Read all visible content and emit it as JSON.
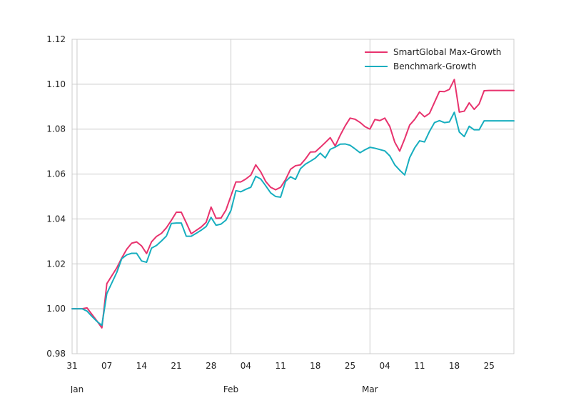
{
  "chart_data": {
    "type": "line",
    "grid": true,
    "legend_position": "top-right",
    "ylim": [
      0.98,
      1.12
    ],
    "y_ticks": [
      "0.98",
      "1.00",
      "1.02",
      "1.04",
      "1.06",
      "1.08",
      "1.10",
      "1.12"
    ],
    "x_range": [
      0,
      89
    ],
    "x_ticks": [
      {
        "day": 0,
        "label": "31"
      },
      {
        "day": 7,
        "label": "07"
      },
      {
        "day": 14,
        "label": "14"
      },
      {
        "day": 21,
        "label": "21"
      },
      {
        "day": 28,
        "label": "28"
      },
      {
        "day": 35,
        "label": "04"
      },
      {
        "day": 42,
        "label": "11"
      },
      {
        "day": 49,
        "label": "18"
      },
      {
        "day": 56,
        "label": "25"
      },
      {
        "day": 63,
        "label": "04"
      },
      {
        "day": 70,
        "label": "11"
      },
      {
        "day": 77,
        "label": "18"
      },
      {
        "day": 84,
        "label": "25"
      }
    ],
    "major_x_ticks": [
      {
        "day": 1,
        "label": "Jan"
      },
      {
        "day": 32,
        "label": "Feb"
      },
      {
        "day": 60,
        "label": "Mar"
      }
    ],
    "x": [
      0,
      1,
      2,
      3,
      4,
      5,
      6,
      7,
      8,
      9,
      10,
      11,
      12,
      13,
      14,
      15,
      16,
      17,
      18,
      19,
      20,
      21,
      22,
      23,
      24,
      25,
      26,
      27,
      28,
      29,
      30,
      31,
      32,
      33,
      34,
      35,
      36,
      37,
      38,
      39,
      40,
      41,
      42,
      43,
      44,
      45,
      46,
      47,
      48,
      49,
      50,
      51,
      52,
      53,
      54,
      55,
      56,
      57,
      58,
      59,
      60,
      61,
      62,
      63,
      64,
      65,
      66,
      67,
      68,
      69,
      70,
      71,
      72,
      73,
      74,
      75,
      76,
      77,
      78,
      79,
      80,
      81,
      82,
      83,
      84,
      85,
      86,
      87,
      88,
      89
    ],
    "series": [
      {
        "name": "SmartGlobal Max-Growth",
        "color": "#e8336e",
        "values": [
          1.0,
          1.0,
          1.0,
          1.0004,
          0.9975,
          0.9946,
          0.9915,
          1.0112,
          1.0147,
          1.0182,
          1.0226,
          1.0265,
          1.0292,
          1.0298,
          1.028,
          1.0246,
          1.0298,
          1.0322,
          1.0336,
          1.0361,
          1.0394,
          1.043,
          1.043,
          1.0383,
          1.0334,
          1.0349,
          1.0364,
          1.0385,
          1.0453,
          1.0403,
          1.0404,
          1.044,
          1.0503,
          1.0565,
          1.0565,
          1.0578,
          1.0595,
          1.0641,
          1.061,
          1.0567,
          1.0541,
          1.053,
          1.0541,
          1.0575,
          1.0621,
          1.0637,
          1.0641,
          1.0667,
          1.0698,
          1.0699,
          1.0719,
          1.074,
          1.0762,
          1.0725,
          1.0772,
          1.0814,
          1.0849,
          1.0844,
          1.083,
          1.0811,
          1.08,
          1.0843,
          1.0838,
          1.0849,
          1.0812,
          1.0742,
          1.0702,
          1.0757,
          1.0818,
          1.0843,
          1.0876,
          1.0855,
          1.087,
          1.0919,
          1.0968,
          1.0967,
          1.0977,
          1.1021,
          1.0876,
          1.088,
          1.0917,
          1.0888,
          1.0912,
          1.0971,
          1.0972,
          1.0972,
          1.0972,
          1.0972,
          1.0972,
          1.0972
        ]
      },
      {
        "name": "Benchmark-Growth",
        "color": "#17aebf",
        "values": [
          1.0,
          1.0,
          1.0,
          0.999,
          0.9966,
          0.9944,
          0.9926,
          1.0068,
          1.0115,
          1.0162,
          1.0223,
          1.024,
          1.0247,
          1.0247,
          1.0213,
          1.0207,
          1.027,
          1.0282,
          1.0302,
          1.0324,
          1.038,
          1.0382,
          1.0382,
          1.0323,
          1.0323,
          1.0336,
          1.035,
          1.0366,
          1.0407,
          1.0372,
          1.0377,
          1.0395,
          1.0438,
          1.0526,
          1.0521,
          1.0532,
          1.0541,
          1.059,
          1.0578,
          1.0548,
          1.0516,
          1.05,
          1.0497,
          1.0567,
          1.0588,
          1.0576,
          1.0624,
          1.0644,
          1.0657,
          1.0671,
          1.0693,
          1.0672,
          1.071,
          1.072,
          1.0733,
          1.0734,
          1.0728,
          1.0712,
          1.0695,
          1.0708,
          1.0719,
          1.0715,
          1.0709,
          1.0703,
          1.0681,
          1.0641,
          1.0617,
          1.0596,
          1.0673,
          1.0716,
          1.0748,
          1.0743,
          1.079,
          1.0829,
          1.0838,
          1.0829,
          1.0832,
          1.0875,
          1.0787,
          1.0767,
          1.0813,
          1.0797,
          1.0797,
          1.0837,
          1.0837,
          1.0837,
          1.0837,
          1.0837,
          1.0837,
          1.0837
        ]
      }
    ]
  }
}
